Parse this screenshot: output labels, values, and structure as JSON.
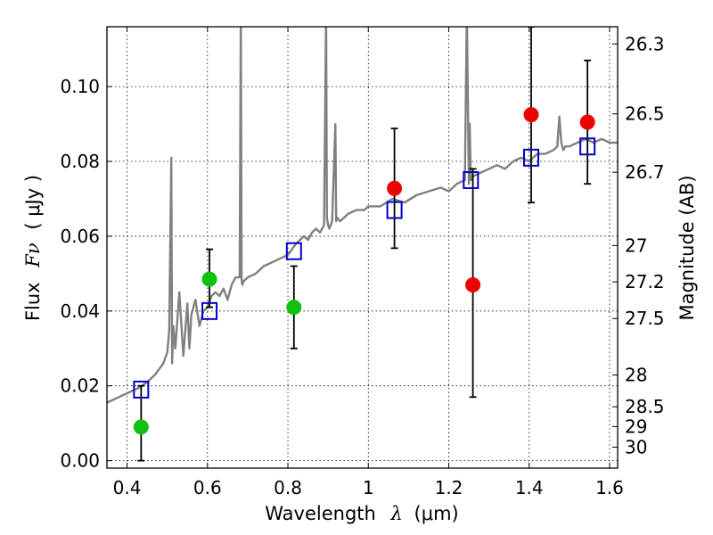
{
  "chart_data": {
    "type": "scatter",
    "xlabel_text": "Wavelength",
    "xlabel_symbol": "λ",
    "xlabel_unit": "(μm)",
    "ylabel_text": "Flux",
    "ylabel_symbol": "Fν",
    "ylabel_unit": "( μJy )",
    "y2label": "Magnitude (AB)",
    "xlim": [
      0.35,
      1.62
    ],
    "ylim": [
      -0.002,
      0.116
    ],
    "grid": true,
    "x_ticks": [
      {
        "value": 0.4,
        "label": "0.4"
      },
      {
        "value": 0.6,
        "label": "0.6"
      },
      {
        "value": 0.8,
        "label": "0.8"
      },
      {
        "value": 1.0,
        "label": "1"
      },
      {
        "value": 1.2,
        "label": "1.2"
      },
      {
        "value": 1.4,
        "label": "1.4"
      },
      {
        "value": 1.6,
        "label": "1.6"
      }
    ],
    "y_ticks": [
      {
        "value": 0.0,
        "label": "0.00"
      },
      {
        "value": 0.02,
        "label": "0.02"
      },
      {
        "value": 0.04,
        "label": "0.04"
      },
      {
        "value": 0.06,
        "label": "0.06"
      },
      {
        "value": 0.08,
        "label": "0.08"
      },
      {
        "value": 0.1,
        "label": "0.10"
      }
    ],
    "y2_ticks": [
      {
        "flux": 0.1114,
        "label": "26.3"
      },
      {
        "flux": 0.0927,
        "label": "26.5"
      },
      {
        "flux": 0.0771,
        "label": "26.7"
      },
      {
        "flux": 0.0575,
        "label": "27"
      },
      {
        "flux": 0.0478,
        "label": "27.2"
      },
      {
        "flux": 0.038,
        "label": "27.5"
      },
      {
        "flux": 0.0229,
        "label": "28"
      },
      {
        "flux": 0.0144,
        "label": "28.5"
      },
      {
        "flux": 0.0091,
        "label": "29"
      },
      {
        "flux": 0.0036,
        "label": "30"
      }
    ],
    "series": [
      {
        "type": "line",
        "color": "#808080",
        "x": [
          0.35,
          0.37,
          0.39,
          0.41,
          0.43,
          0.45,
          0.47,
          0.49,
          0.5,
          0.505,
          0.51,
          0.512,
          0.515,
          0.52,
          0.53,
          0.54,
          0.55,
          0.555,
          0.56,
          0.57,
          0.58,
          0.59,
          0.6,
          0.61,
          0.62,
          0.63,
          0.64,
          0.65,
          0.66,
          0.67,
          0.68,
          0.683,
          0.685,
          0.687,
          0.69,
          0.7,
          0.72,
          0.74,
          0.76,
          0.78,
          0.8,
          0.82,
          0.84,
          0.85,
          0.86,
          0.87,
          0.88,
          0.89,
          0.895,
          0.897,
          0.9,
          0.903,
          0.91,
          0.918,
          0.92,
          0.922,
          0.93,
          0.95,
          0.97,
          0.99,
          1.0,
          1.03,
          1.06,
          1.09,
          1.12,
          1.15,
          1.18,
          1.2,
          1.22,
          1.24,
          1.245,
          1.25,
          1.252,
          1.255,
          1.26,
          1.28,
          1.3,
          1.32,
          1.34,
          1.36,
          1.38,
          1.4,
          1.42,
          1.44,
          1.46,
          1.47,
          1.475,
          1.48,
          1.485,
          1.49,
          1.5,
          1.52,
          1.54,
          1.56,
          1.58,
          1.6,
          1.62
        ],
        "y": [
          0.0155,
          0.0165,
          0.0175,
          0.0185,
          0.0195,
          0.021,
          0.023,
          0.026,
          0.029,
          0.035,
          0.081,
          0.026,
          0.036,
          0.03,
          0.045,
          0.028,
          0.042,
          0.03,
          0.039,
          0.043,
          0.036,
          0.04,
          0.041,
          0.044,
          0.045,
          0.044,
          0.046,
          0.043,
          0.047,
          0.049,
          0.049,
          0.12,
          0.048,
          0.047,
          0.048,
          0.049,
          0.05,
          0.052,
          0.053,
          0.054,
          0.055,
          0.058,
          0.06,
          0.059,
          0.061,
          0.062,
          0.061,
          0.063,
          0.12,
          0.065,
          0.063,
          0.062,
          0.064,
          0.09,
          0.064,
          0.065,
          0.064,
          0.066,
          0.067,
          0.067,
          0.068,
          0.068,
          0.07,
          0.069,
          0.071,
          0.072,
          0.073,
          0.072,
          0.074,
          0.075,
          0.12,
          0.074,
          0.09,
          0.075,
          0.076,
          0.077,
          0.078,
          0.079,
          0.078,
          0.08,
          0.081,
          0.08,
          0.082,
          0.082,
          0.083,
          0.084,
          0.092,
          0.085,
          0.083,
          0.084,
          0.084,
          0.085,
          0.086,
          0.085,
          0.086,
          0.085,
          0.085
        ]
      },
      {
        "type": "model-boxes",
        "color": "#0000cc",
        "x": [
          0.435,
          0.605,
          0.815,
          1.065,
          1.255,
          1.405,
          1.545
        ],
        "y": [
          0.019,
          0.04,
          0.056,
          0.067,
          0.075,
          0.081,
          0.084
        ]
      },
      {
        "type": "points",
        "color": "#11c011",
        "x": [
          0.435,
          0.605,
          0.815
        ],
        "y": [
          0.009,
          0.0485,
          0.041
        ],
        "yerr_low": [
          0.009,
          0.0075,
          0.011
        ],
        "yerr_high": [
          0.011,
          0.008,
          0.011
        ]
      },
      {
        "type": "points",
        "color": "#ee0000",
        "x": [
          1.065,
          1.26,
          1.405,
          1.545
        ],
        "y": [
          0.0728,
          0.047,
          0.0925,
          0.0905
        ],
        "yerr_low": [
          0.016,
          0.03,
          0.0235,
          0.0165
        ],
        "yerr_high": [
          0.016,
          0.031,
          0.0235,
          0.0165
        ]
      }
    ]
  }
}
